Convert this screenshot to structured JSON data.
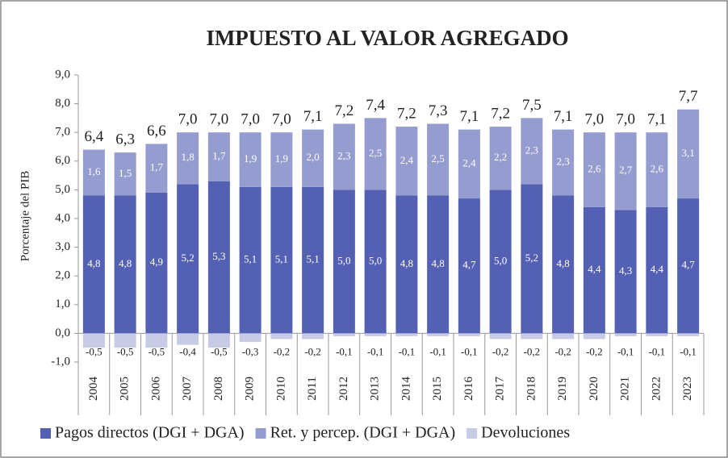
{
  "chart_data": {
    "type": "stacked_bar",
    "title": "IMPUESTO AL VALOR AGREGADO",
    "y_axis_label": "Porcentaje  del PIB",
    "categories": [
      "2004",
      "2005",
      "2006",
      "2007",
      "2008",
      "2009",
      "2010",
      "2011",
      "2012",
      "2013",
      "2014",
      "2015",
      "2016",
      "2017",
      "2018",
      "2019",
      "2020",
      "2021",
      "2022",
      "2023"
    ],
    "series": [
      {
        "name": "Pagos directos (DGI + DGA)",
        "color": "#5460b4",
        "values": [
          4.8,
          4.8,
          4.9,
          5.2,
          5.3,
          5.1,
          5.1,
          5.1,
          5.0,
          5.0,
          4.8,
          4.8,
          4.7,
          5.0,
          5.2,
          4.8,
          4.4,
          4.3,
          4.4,
          4.7
        ],
        "value_labels": [
          "4,8",
          "4,8",
          "4,9",
          "5,2",
          "5,3",
          "5,1",
          "5,1",
          "5,1",
          "5,0",
          "5,0",
          "4,8",
          "4,8",
          "4,7",
          "5,0",
          "5,2",
          "4,8",
          "4,4",
          "4,3",
          "4,4",
          "4,7"
        ]
      },
      {
        "name": "Ret. y percep. (DGI + DGA)",
        "color": "#959ccf",
        "values": [
          1.6,
          1.5,
          1.7,
          1.8,
          1.7,
          1.9,
          1.9,
          2.0,
          2.3,
          2.5,
          2.4,
          2.5,
          2.4,
          2.2,
          2.3,
          2.3,
          2.6,
          2.7,
          2.6,
          3.1
        ],
        "value_labels": [
          "1,6",
          "1,5",
          "1,7",
          "1,8",
          "1,7",
          "1,9",
          "1,9",
          "2,0",
          "2,3",
          "2,5",
          "2,4",
          "2,5",
          "2,4",
          "2,2",
          "2,3",
          "2,3",
          "2,6",
          "2,7",
          "2,6",
          "3,1"
        ]
      },
      {
        "name": "Devoluciones",
        "color": "#c8cbe6",
        "values": [
          -0.5,
          -0.5,
          -0.5,
          -0.4,
          -0.5,
          -0.3,
          -0.2,
          -0.2,
          -0.1,
          -0.1,
          -0.1,
          -0.1,
          -0.1,
          -0.2,
          -0.2,
          -0.2,
          -0.2,
          -0.1,
          -0.1,
          -0.1
        ],
        "value_labels": [
          "-0,5",
          "-0,5",
          "-0,5",
          "-0,4",
          "-0,5",
          "-0,3",
          "-0,2",
          "-0,2",
          "-0,1",
          "-0,1",
          "-0,1",
          "-0,1",
          "-0,1",
          "-0,2",
          "-0,2",
          "-0,2",
          "-0,2",
          "-0,1",
          "-0,1",
          "-0,1"
        ]
      }
    ],
    "totals": {
      "values": [
        6.4,
        6.3,
        6.6,
        7.0,
        7.0,
        7.0,
        7.0,
        7.1,
        7.2,
        7.4,
        7.2,
        7.3,
        7.1,
        7.2,
        7.5,
        7.1,
        7.0,
        7.0,
        7.1,
        7.7
      ],
      "value_labels": [
        "6,4",
        "6,3",
        "6,6",
        "7,0",
        "7,0",
        "7,0",
        "7,0",
        "7,1",
        "7,2",
        "7,4",
        "7,2",
        "7,3",
        "7,1",
        "7,2",
        "7,5",
        "7,1",
        "7,0",
        "7,0",
        "7,1",
        "7,7"
      ]
    },
    "ylim": [
      -1,
      9
    ],
    "yticks": [
      {
        "value": -1,
        "label": "-1,0"
      },
      {
        "value": 0,
        "label": "0,0"
      },
      {
        "value": 1,
        "label": "1,0"
      },
      {
        "value": 2,
        "label": "2,0"
      },
      {
        "value": 3,
        "label": "3,0"
      },
      {
        "value": 4,
        "label": "4,0"
      },
      {
        "value": 5,
        "label": "5,0"
      },
      {
        "value": 6,
        "label": "6,0"
      },
      {
        "value": 7,
        "label": "7,0"
      },
      {
        "value": 8,
        "label": "8,0"
      },
      {
        "value": 9,
        "label": "9,0"
      }
    ],
    "grid": false,
    "legend": "bottom"
  }
}
